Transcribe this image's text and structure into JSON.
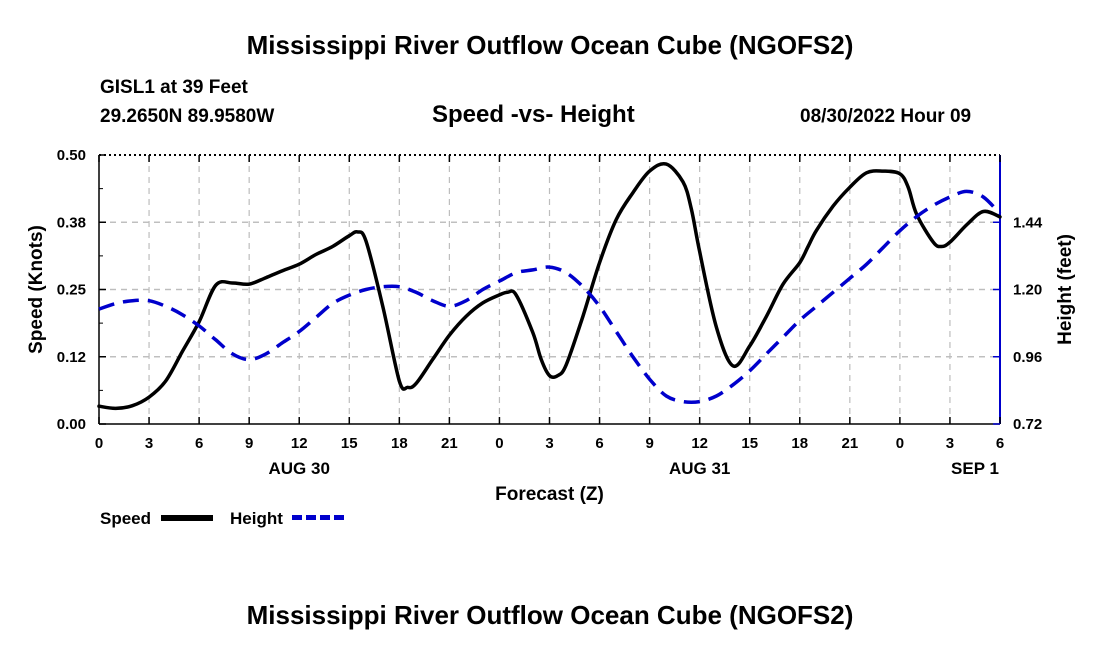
{
  "header": {
    "title": "Mississippi River Outflow Ocean Cube (NGOFS2)",
    "station": "GISL1 at 39 Feet",
    "coords": "29.2650N  89.9580W",
    "subtitle": "Speed -vs- Height",
    "datetime": "08/30/2022 Hour 09"
  },
  "footer": {
    "title": "Mississippi River Outflow Ocean Cube (NGOFS2)"
  },
  "legend": {
    "speed": "Speed",
    "height": "Height"
  },
  "chart_data": {
    "type": "line",
    "title": "Speed -vs- Height",
    "xlabel": "Forecast (Z)",
    "ylabel": "Speed (Knots)",
    "y2label": "Height (feet)",
    "xlim": [
      0,
      54
    ],
    "ylim": [
      0,
      0.5
    ],
    "y2lim": [
      0.72,
      1.68
    ],
    "grid": true,
    "x_ticks": [
      0,
      3,
      6,
      9,
      12,
      15,
      18,
      21,
      24,
      27,
      30,
      33,
      36,
      39,
      42,
      45,
      48,
      51,
      54
    ],
    "x_tick_labels": [
      "0",
      "3",
      "6",
      "9",
      "12",
      "15",
      "18",
      "21",
      "0",
      "3",
      "6",
      "9",
      "12",
      "15",
      "18",
      "21",
      "0",
      "3",
      "6"
    ],
    "day_labels": [
      {
        "x": 12,
        "label": "AUG 30"
      },
      {
        "x": 36,
        "label": "AUG 31"
      },
      {
        "x": 52.5,
        "label": "SEP 1"
      }
    ],
    "y_ticks": [
      0,
      0.125,
      0.25,
      0.375,
      0.5
    ],
    "y_tick_labels": [
      "0.00",
      "0.12",
      "0.25",
      "0.38",
      "0.50"
    ],
    "y2_ticks": [
      0.72,
      0.96,
      1.2,
      1.44
    ],
    "y2_tick_labels": [
      "0.72",
      "0.96",
      "1.20",
      "1.44"
    ],
    "series": [
      {
        "name": "Speed",
        "axis": "left",
        "color": "#000000",
        "dash": "solid",
        "x": [
          0,
          1,
          2,
          3,
          4,
          5,
          6,
          7,
          8,
          9,
          10,
          11,
          12,
          13,
          14,
          15,
          15.5,
          16,
          17,
          18,
          18.5,
          19,
          20,
          21,
          22,
          23,
          24,
          24.5,
          25,
          26,
          26.5,
          27,
          27.5,
          28,
          29,
          30,
          31,
          32,
          33,
          34,
          35,
          35.5,
          36,
          37,
          38,
          39,
          40,
          41,
          42,
          42.5,
          43,
          44,
          45,
          46,
          47,
          48,
          48.5,
          49,
          50,
          50.5,
          51,
          52,
          53,
          54
        ],
        "values": [
          0.033,
          0.029,
          0.034,
          0.05,
          0.08,
          0.135,
          0.19,
          0.258,
          0.262,
          0.26,
          0.272,
          0.285,
          0.297,
          0.315,
          0.33,
          0.35,
          0.357,
          0.34,
          0.22,
          0.08,
          0.068,
          0.075,
          0.12,
          0.165,
          0.2,
          0.225,
          0.24,
          0.245,
          0.24,
          0.17,
          0.12,
          0.09,
          0.09,
          0.11,
          0.2,
          0.3,
          0.38,
          0.43,
          0.47,
          0.483,
          0.45,
          0.4,
          0.32,
          0.18,
          0.108,
          0.145,
          0.2,
          0.26,
          0.3,
          0.33,
          0.36,
          0.405,
          0.44,
          0.467,
          0.47,
          0.465,
          0.44,
          0.39,
          0.338,
          0.33,
          0.338,
          0.37,
          0.395,
          0.385
        ]
      },
      {
        "name": "Height",
        "axis": "right",
        "color": "#0000cc",
        "dash": "dashed",
        "x": [
          0,
          1,
          2,
          3,
          4,
          5,
          6,
          7,
          8,
          9,
          10,
          11,
          12,
          13,
          14,
          15,
          16,
          17,
          18,
          19,
          20,
          21,
          22,
          23,
          24,
          25,
          26,
          27,
          28,
          29,
          30,
          31,
          32,
          33,
          34,
          35,
          36,
          37,
          38,
          39,
          40,
          41,
          42,
          43,
          44,
          45,
          46,
          47,
          48,
          49,
          50,
          51,
          52,
          53,
          54
        ],
        "values": [
          1.13,
          1.15,
          1.16,
          1.16,
          1.14,
          1.11,
          1.07,
          1.02,
          0.97,
          0.95,
          0.97,
          1.01,
          1.05,
          1.1,
          1.15,
          1.18,
          1.2,
          1.21,
          1.21,
          1.19,
          1.16,
          1.14,
          1.16,
          1.2,
          1.23,
          1.26,
          1.27,
          1.28,
          1.26,
          1.21,
          1.14,
          1.05,
          0.96,
          0.88,
          0.82,
          0.8,
          0.8,
          0.82,
          0.86,
          0.91,
          0.97,
          1.03,
          1.09,
          1.14,
          1.19,
          1.24,
          1.29,
          1.35,
          1.41,
          1.46,
          1.5,
          1.53,
          1.55,
          1.53,
          1.47
        ]
      }
    ]
  }
}
